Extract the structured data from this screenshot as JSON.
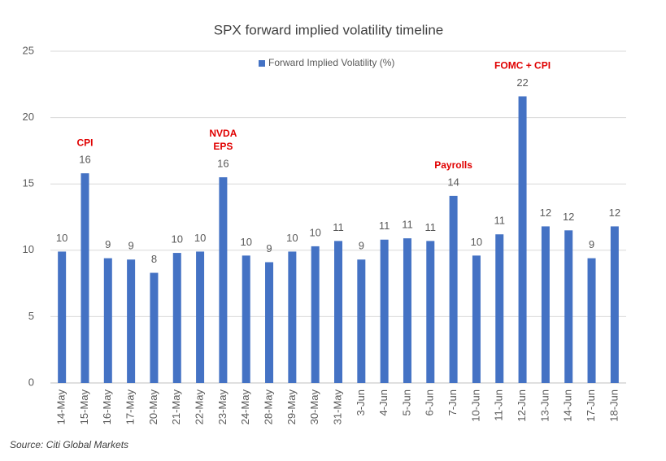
{
  "chart_data": {
    "type": "bar",
    "title": "SPX forward implied volatility timeline",
    "categories": [
      "14-May",
      "15-May",
      "16-May",
      "17-May",
      "20-May",
      "21-May",
      "22-May",
      "23-May",
      "24-May",
      "28-May",
      "29-May",
      "30-May",
      "31-May",
      "3-Jun",
      "4-Jun",
      "5-Jun",
      "6-Jun",
      "7-Jun",
      "10-Jun",
      "11-Jun",
      "12-Jun",
      "13-Jun",
      "14-Jun",
      "17-Jun",
      "18-Jun"
    ],
    "series": [
      {
        "name": "Forward Implied Volatility (%)",
        "color": "#4472c4",
        "values": [
          9.9,
          15.8,
          9.4,
          9.3,
          8.3,
          9.8,
          9.9,
          15.5,
          9.6,
          9.1,
          9.9,
          10.3,
          10.7,
          9.3,
          10.8,
          10.9,
          10.7,
          14.1,
          9.6,
          11.2,
          21.6,
          11.8,
          11.5,
          9.4,
          11.8
        ],
        "value_labels": [
          "10",
          "16",
          "9",
          "9",
          "8",
          "10",
          "10",
          "16",
          "10",
          "9",
          "10",
          "10",
          "11",
          "9",
          "11",
          "11",
          "11",
          "14",
          "10",
          "11",
          "22",
          "12",
          "12",
          "9",
          "12"
        ]
      }
    ],
    "annotations": [
      {
        "at": "15-May",
        "text": [
          "CPI"
        ]
      },
      {
        "at": "23-May",
        "text": [
          "NVDA",
          "EPS"
        ]
      },
      {
        "at": "7-Jun",
        "text": [
          "Payrolls"
        ]
      },
      {
        "at": "12-Jun",
        "text": [
          "FOMC + CPI"
        ]
      }
    ],
    "ylim": [
      0,
      25
    ],
    "yticks": [
      0,
      5,
      10,
      15,
      20,
      25
    ],
    "grid": true,
    "legend": "top",
    "source": "Source: Citi Global Markets"
  }
}
